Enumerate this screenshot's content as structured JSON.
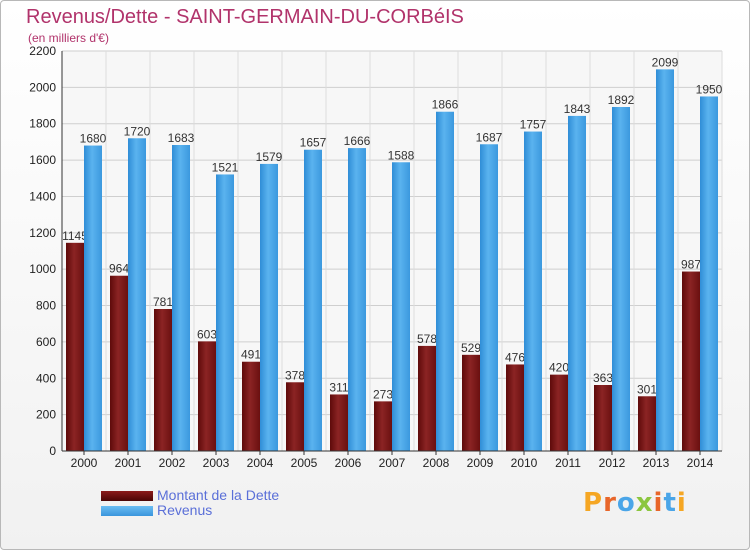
{
  "title": "Revenus/Dette - SAINT-GERMAIN-DU-CORBéIS",
  "subtitle": "(en milliers d'€)",
  "logo_text": "Proxiti",
  "legend": [
    {
      "label": "Montant de la Dette",
      "color": "#8b1a1a"
    },
    {
      "label": "Revenus",
      "color": "#4aa5e8"
    }
  ],
  "chart_data": {
    "type": "bar",
    "title": "Revenus/Dette - SAINT-GERMAIN-DU-CORBéIS",
    "subtitle": "(en milliers d'€)",
    "categories": [
      "2000",
      "2001",
      "2002",
      "2003",
      "2004",
      "2005",
      "2006",
      "2007",
      "2008",
      "2009",
      "2010",
      "2011",
      "2012",
      "2013",
      "2014"
    ],
    "series": [
      {
        "name": "Montant de la Dette",
        "color": "#8b1a1a",
        "values": [
          1145,
          964,
          781,
          603,
          491,
          378,
          311,
          273,
          578,
          529,
          476,
          420,
          363,
          301,
          987
        ]
      },
      {
        "name": "Revenus",
        "color": "#4aa5e8",
        "values": [
          1680,
          1720,
          1683,
          1521,
          1579,
          1657,
          1666,
          1588,
          1866,
          1687,
          1757,
          1843,
          1892,
          2099,
          1950
        ]
      }
    ],
    "ylim": [
      0,
      2200
    ],
    "yticks": [
      0,
      200,
      400,
      600,
      800,
      1000,
      1200,
      1400,
      1600,
      1800,
      2000,
      2200
    ],
    "grid": true,
    "legend_position": "bottom-left"
  }
}
